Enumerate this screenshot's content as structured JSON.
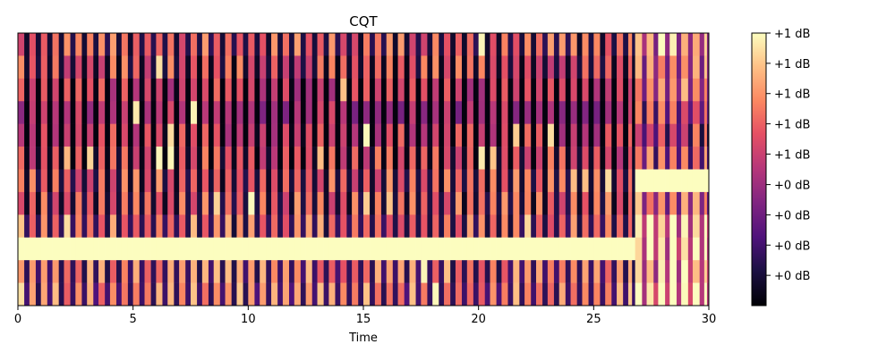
{
  "chart_data": {
    "type": "heatmap",
    "title": "CQT",
    "xlabel": "Time",
    "ylabel": "",
    "xlim": [
      0,
      30
    ],
    "x_ticks": [
      0,
      5,
      10,
      15,
      20,
      25,
      30
    ],
    "x_tick_labels": [
      "0",
      "5",
      "10",
      "15",
      "20",
      "25",
      "30"
    ],
    "n_bins": 12,
    "n_frames": 60,
    "frame_duration": 0.5,
    "colormap": "magma",
    "colorbar": {
      "tick_labels": [
        "+1 dB",
        "+1 dB",
        "+1 dB",
        "+1 dB",
        "+1 dB",
        "+0 dB",
        "+0 dB",
        "+0 dB",
        "+0 dB"
      ],
      "tick_values": [
        1.0,
        0.889,
        0.778,
        0.667,
        0.556,
        0.444,
        0.333,
        0.222,
        0.111
      ],
      "range": [
        0,
        1
      ]
    },
    "rows_top_to_bottom": [
      {
        "bin": 12,
        "mean_level": 0.42,
        "segment_two_level": 0.8
      },
      {
        "bin": 11,
        "mean_level": 0.38,
        "segment_two_level": 0.72
      },
      {
        "bin": 10,
        "mean_level": 0.3,
        "segment_two_level": 0.7
      },
      {
        "bin": 9,
        "mean_level": 0.2,
        "segment_two_level": 0.6
      },
      {
        "bin": 8,
        "mean_level": 0.3,
        "segment_two_level": 0.55
      },
      {
        "bin": 7,
        "mean_level": 0.35,
        "segment_two_level": 0.62
      },
      {
        "bin": 6,
        "mean_level": 0.4,
        "segment_two_level": 0.97
      },
      {
        "bin": 5,
        "mean_level": 0.4,
        "segment_two_level": 0.7
      },
      {
        "bin": 4,
        "mean_level": 0.45,
        "segment_two_level": 0.88
      },
      {
        "bin": 3,
        "mean_level": 1.0,
        "segment_two_level": 0.88
      },
      {
        "bin": 2,
        "mean_level": 0.48,
        "segment_two_level": 0.85
      },
      {
        "bin": 1,
        "mean_level": 0.5,
        "segment_two_level": 0.9
      }
    ],
    "segments": [
      {
        "start": 0,
        "end": 26.8
      },
      {
        "start": 26.8,
        "end": 30
      }
    ],
    "colors": {
      "min": "#000004",
      "max": "#fcfdbf"
    }
  }
}
